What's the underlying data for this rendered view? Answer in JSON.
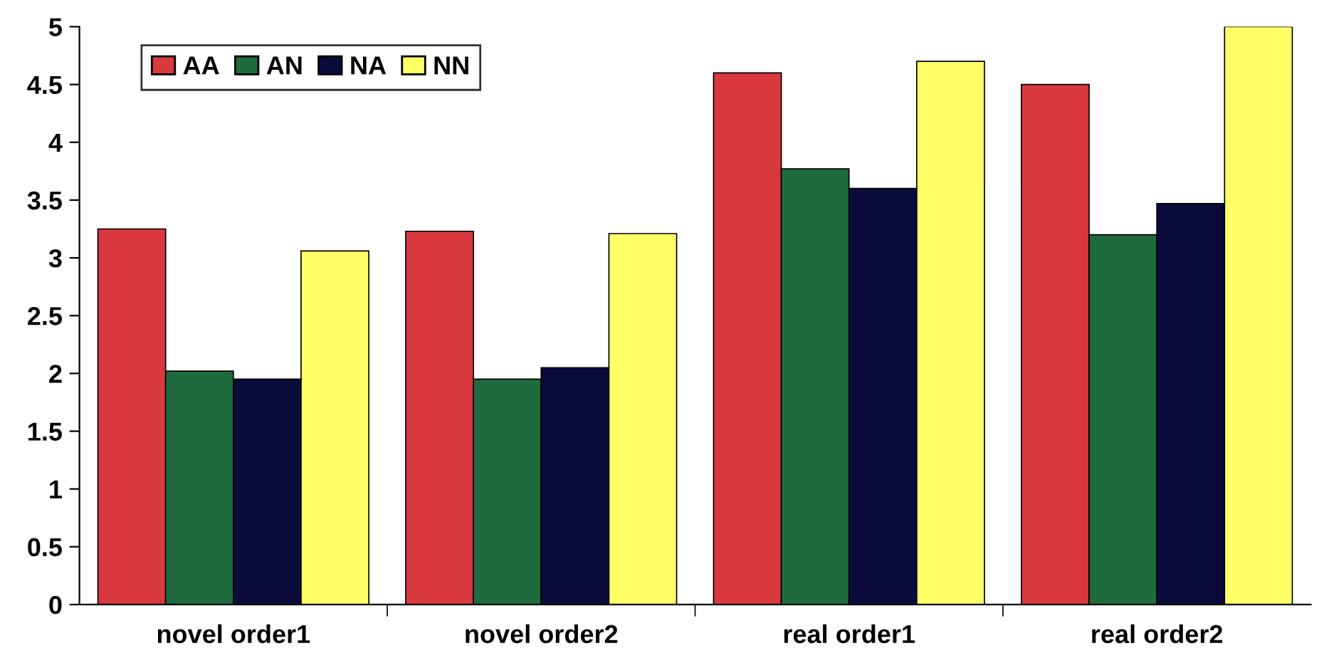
{
  "chart_data": {
    "type": "bar",
    "categories": [
      "novel order1",
      "novel order2",
      "real order1",
      "real order2"
    ],
    "series": [
      {
        "name": "AA",
        "color": "#d9383f",
        "values": [
          3.25,
          3.23,
          4.6,
          4.5
        ]
      },
      {
        "name": "AN",
        "color": "#1f6b3e",
        "values": [
          2.02,
          1.95,
          3.77,
          3.2
        ]
      },
      {
        "name": "NA",
        "color": "#0b0b3b",
        "values": [
          1.95,
          2.05,
          3.6,
          3.47
        ]
      },
      {
        "name": "NN",
        "color": "#ffff66",
        "values": [
          3.06,
          3.21,
          4.7,
          5.0
        ]
      }
    ],
    "ylim": [
      0,
      5
    ],
    "yticks": [
      0,
      0.5,
      1,
      1.5,
      2,
      2.5,
      3,
      3.5,
      4,
      4.5,
      5
    ],
    "grid": false,
    "legend": "top left"
  }
}
